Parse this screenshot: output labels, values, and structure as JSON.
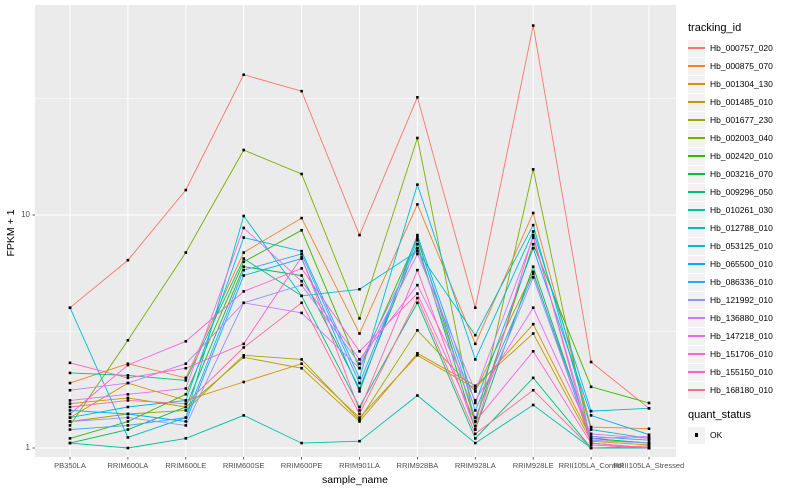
{
  "chart_data": {
    "type": "line",
    "title": "",
    "xlabel": "sample_name",
    "ylabel": "FPKM + 1",
    "y_scale": "log10",
    "y_ticks": [
      1,
      10
    ],
    "y_minor_ticks": [
      3.162,
      31.62
    ],
    "ylim": [
      0.92,
      80
    ],
    "grid": true,
    "legend_position": "right",
    "marker": "black-square",
    "categories": [
      "PB350LA",
      "RRIM600LA",
      "RRIM600LE",
      "RRIM600SE",
      "RRIM600PE",
      "RRIM901LA",
      "RRIM928BA",
      "RRIM928LA",
      "RRIM928LE",
      "RRII105LA_Control",
      "RRII105LA_Stressed"
    ],
    "series": [
      {
        "name": "Hb_000757_020",
        "color": "#F8766D",
        "values": [
          4.0,
          6.4,
          12.8,
          40.0,
          34.0,
          8.2,
          32.0,
          4.0,
          65.0,
          2.34,
          1.48
        ]
      },
      {
        "name": "Hb_000875_070",
        "color": "#EA8331",
        "values": [
          1.9,
          2.3,
          2.0,
          6.9,
          9.7,
          3.1,
          11.1,
          2.8,
          10.2,
          1.23,
          1.21
        ]
      },
      {
        "name": "Hb_001304_130",
        "color": "#D89000",
        "values": [
          1.35,
          1.9,
          1.6,
          1.92,
          2.3,
          1.35,
          2.5,
          1.8,
          3.4,
          1.1,
          1.05
        ]
      },
      {
        "name": "Hb_001485_010",
        "color": "#C09B00",
        "values": [
          1.55,
          1.64,
          1.5,
          2.45,
          2.2,
          1.3,
          2.55,
          1.85,
          3.1,
          1.07,
          1.03
        ]
      },
      {
        "name": "Hb_001677_230",
        "color": "#A3A500",
        "values": [
          1.3,
          1.4,
          1.45,
          2.5,
          2.4,
          1.32,
          3.2,
          1.75,
          5.7,
          1.05,
          1.0
        ]
      },
      {
        "name": "Hb_002003_040",
        "color": "#7CAE00",
        "values": [
          1.25,
          2.9,
          6.9,
          19.0,
          15.0,
          3.6,
          21.4,
          1.24,
          15.7,
          1.05,
          1.0
        ]
      },
      {
        "name": "Hb_002420_010",
        "color": "#39B600",
        "values": [
          1.1,
          1.3,
          1.7,
          6.3,
          8.6,
          2.2,
          8.0,
          1.3,
          7.5,
          1.83,
          1.56
        ]
      },
      {
        "name": "Hb_003216_070",
        "color": "#00BB4E",
        "values": [
          1.05,
          1.2,
          1.5,
          6.0,
          5.5,
          1.8,
          7.5,
          1.2,
          6.0,
          1.1,
          1.05
        ]
      },
      {
        "name": "Hb_009296_050",
        "color": "#00BF7D",
        "values": [
          2.1,
          2.05,
          1.95,
          6.5,
          4.5,
          1.5,
          4.2,
          1.1,
          2.0,
          1.0,
          1.0
        ]
      },
      {
        "name": "Hb_010261_030",
        "color": "#00C1A3",
        "values": [
          1.05,
          1.0,
          1.1,
          1.38,
          1.05,
          1.07,
          1.68,
          1.05,
          1.53,
          1.0,
          1.0
        ]
      },
      {
        "name": "Hb_012788_010",
        "color": "#00BFC4",
        "values": [
          4.0,
          1.11,
          1.35,
          9.9,
          4.5,
          4.8,
          7.0,
          3.05,
          9.05,
          1.2,
          1.1
        ]
      },
      {
        "name": "Hb_053125_010",
        "color": "#00BAE0",
        "values": [
          1.35,
          1.5,
          1.6,
          8.0,
          7.0,
          2.0,
          13.5,
          2.4,
          8.5,
          1.44,
          1.48
        ]
      },
      {
        "name": "Hb_065500_010",
        "color": "#00B0F6",
        "values": [
          1.45,
          1.4,
          1.3,
          5.5,
          6.5,
          1.75,
          8.2,
          1.56,
          7.2,
          1.38,
          1.14
        ]
      },
      {
        "name": "Hb_086336_010",
        "color": "#35A2FF",
        "values": [
          1.2,
          1.25,
          1.35,
          5.8,
          6.8,
          1.9,
          7.8,
          1.45,
          5.6,
          1.12,
          1.08
        ]
      },
      {
        "name": "Hb_121992_010",
        "color": "#9590FF",
        "values": [
          1.3,
          1.35,
          1.25,
          4.2,
          5.0,
          2.3,
          7.2,
          1.35,
          5.4,
          1.08,
          1.05
        ]
      },
      {
        "name": "Hb_136880_010",
        "color": "#C77CFF",
        "values": [
          1.77,
          1.9,
          2.3,
          4.2,
          3.8,
          2.2,
          6.8,
          1.75,
          8.0,
          1.1,
          1.12
        ]
      },
      {
        "name": "Hb_147218_010",
        "color": "#E76BF3",
        "values": [
          1.6,
          1.7,
          1.8,
          8.8,
          5.2,
          2.4,
          5.0,
          1.6,
          4.0,
          1.15,
          1.1
        ]
      },
      {
        "name": "Hb_151706_010",
        "color": "#FA62DB",
        "values": [
          1.4,
          2.27,
          2.87,
          4.7,
          5.9,
          2.6,
          4.6,
          1.3,
          2.6,
          1.05,
          1.0
        ]
      },
      {
        "name": "Hb_155150_010",
        "color": "#FF62BC",
        "values": [
          2.32,
          2.0,
          2.2,
          2.8,
          6.6,
          1.45,
          5.8,
          1.2,
          8.2,
          1.03,
          1.0
        ]
      },
      {
        "name": "Hb_168180_010",
        "color": "#FF6A98",
        "values": [
          1.5,
          1.6,
          1.55,
          2.7,
          4.2,
          1.4,
          4.4,
          1.15,
          1.77,
          1.0,
          1.02
        ]
      }
    ],
    "legend": {
      "color_title": "tracking_id",
      "shape_title": "quant_status",
      "shape_entries": [
        {
          "label": "OK"
        }
      ]
    }
  },
  "colors": {
    "panel_bg": "#EBEBEB",
    "grid_major": "#FFFFFF",
    "grid_minor": "#FFFFFF",
    "legend_key_bg": "#F2F2F2",
    "tick_text": "#4D4D4D",
    "axis_text": "#000000",
    "marker": "#000000",
    "tick_mark": "#333333"
  }
}
